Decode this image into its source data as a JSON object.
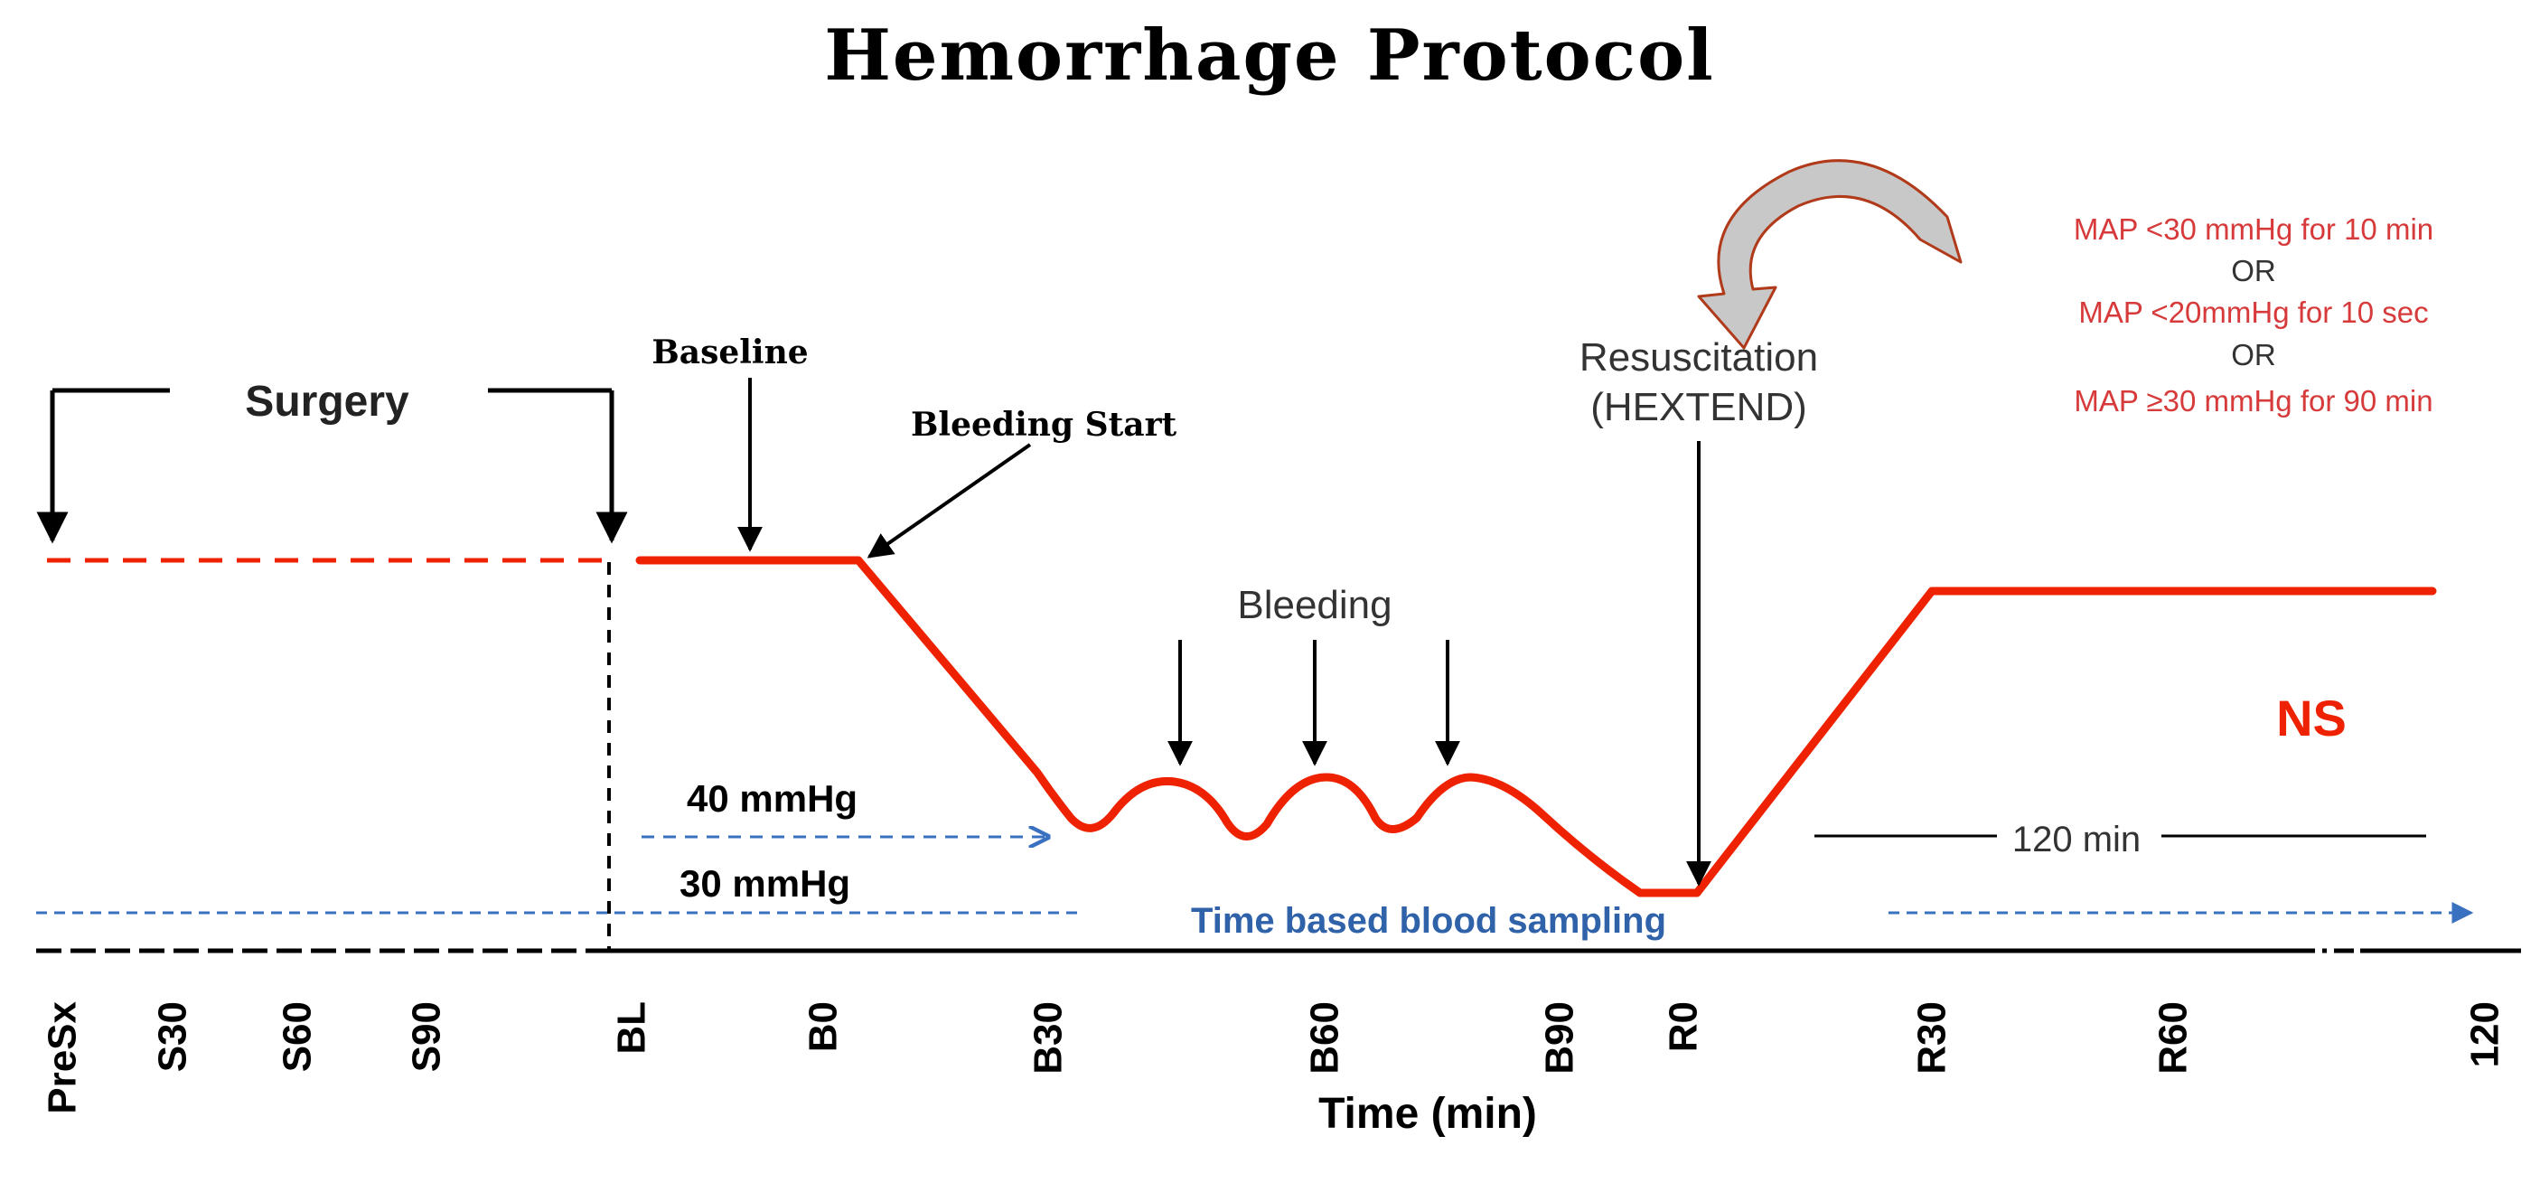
{
  "title": "Hemorrhage Protocol",
  "labels": {
    "surgery": "Surgery",
    "baseline": "Baseline",
    "bleeding_start": "Bleeding Start",
    "bleeding": "Bleeding",
    "resuscitation_line1": "Resuscitation",
    "resuscitation_line2": "(HEXTEND)",
    "map_40": "40 mmHg",
    "map_30": "30 mmHg",
    "duration": "120 min",
    "fluid": "NS",
    "sampling": "Time based blood sampling",
    "x_axis_title": "Time (min)"
  },
  "criteria": [
    "MAP <30 mmHg for 10 min",
    "OR",
    "MAP <20mmHg for 10 sec",
    "OR",
    "MAP ≥30 mmHg for 90 min"
  ],
  "time_points": [
    "PreSx",
    "S30",
    "S60",
    "S90",
    "BL",
    "B0",
    "B30",
    "B60",
    "B90",
    "R0",
    "R30",
    "R60",
    "120"
  ],
  "colors": {
    "trace": "#ee2200",
    "criteria_text": "#d73a3a",
    "sampling": "#3a70c0",
    "sampling_text": "#2f62a8",
    "fluid_text": "#ee2200",
    "axis": "#000000",
    "arrow_fill": "#c8c8c8"
  }
}
